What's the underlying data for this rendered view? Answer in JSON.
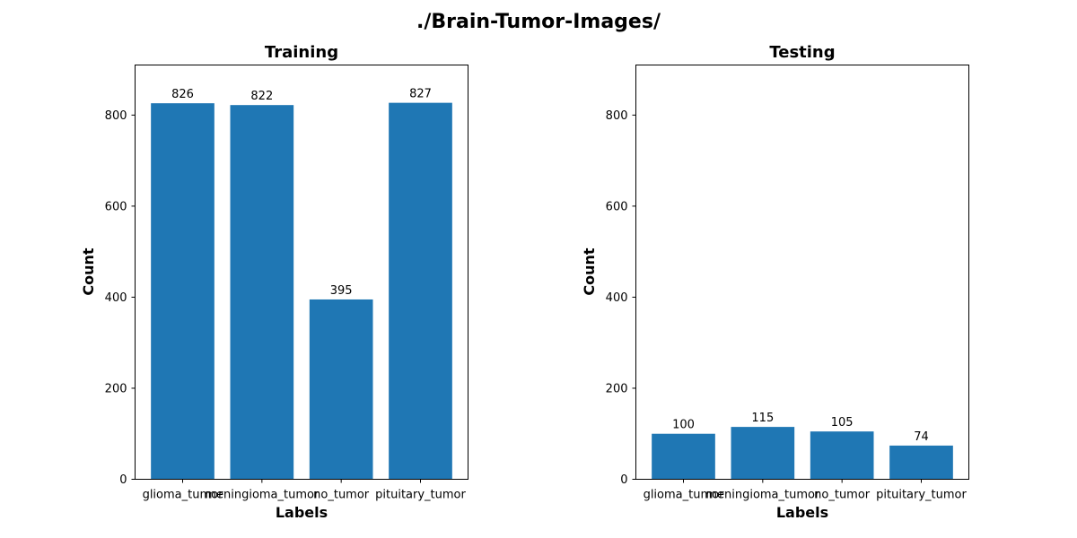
{
  "figure": {
    "suptitle": "./Brain-Tumor-Images/"
  },
  "colors": {
    "bar": "#1f77b4",
    "axes": "#000000",
    "background": "#ffffff"
  },
  "chart_data": [
    {
      "type": "bar",
      "title": "Training",
      "xlabel": "Labels",
      "ylabel": "Count",
      "categories": [
        "glioma_tumor",
        "meningioma_tumor",
        "no_tumor",
        "pituitary_tumor"
      ],
      "values": [
        826,
        822,
        395,
        827
      ],
      "ylim": [
        0,
        910
      ],
      "yticks": [
        0,
        200,
        400,
        600,
        800
      ],
      "grid": false,
      "data_labels": true
    },
    {
      "type": "bar",
      "title": "Testing",
      "xlabel": "Labels",
      "ylabel": "Count",
      "categories": [
        "glioma_tumor",
        "meningioma_tumor",
        "no_tumor",
        "pituitary_tumor"
      ],
      "values": [
        100,
        115,
        105,
        74
      ],
      "ylim": [
        0,
        910
      ],
      "yticks": [
        0,
        200,
        400,
        600,
        800
      ],
      "grid": false,
      "data_labels": true
    }
  ]
}
